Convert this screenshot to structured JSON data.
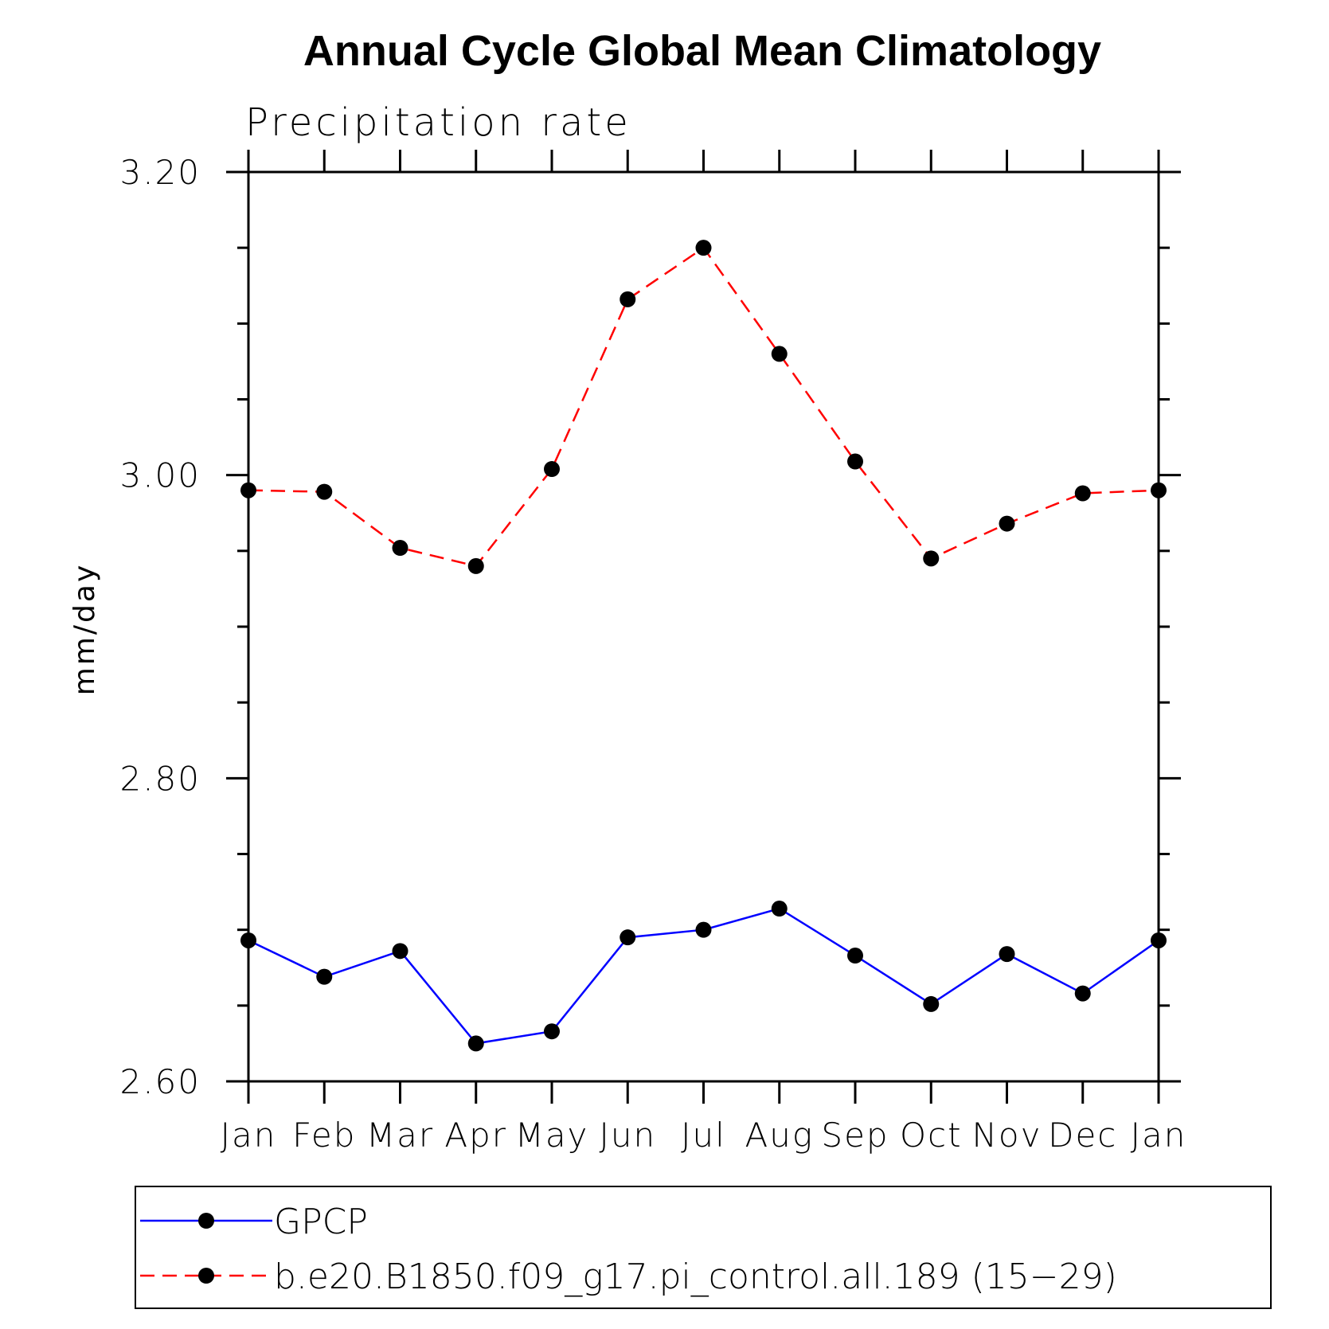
{
  "chart_data": {
    "type": "line",
    "title": "Annual Cycle Global Mean Climatology",
    "subtitle": "Precipitation rate",
    "xlabel": "",
    "ylabel": "mm/day",
    "categories": [
      "Jan",
      "Feb",
      "Mar",
      "Apr",
      "May",
      "Jun",
      "Jul",
      "Aug",
      "Sep",
      "Oct",
      "Nov",
      "Dec",
      "Jan"
    ],
    "ylim": [
      2.6,
      3.2
    ],
    "yticks": [
      "2.60",
      "2.80",
      "3.00",
      "3.20"
    ],
    "yminor_step": 0.05,
    "grid": false,
    "legend_position": "bottom",
    "series": [
      {
        "name": "GPCP",
        "color": "#0000ff",
        "dash": "solid",
        "values": [
          2.693,
          2.669,
          2.686,
          2.625,
          2.633,
          2.695,
          2.7,
          2.714,
          2.683,
          2.651,
          2.684,
          2.658,
          2.693
        ]
      },
      {
        "name": "b.e20.B1850.f09_g17.pi_control.all.189 (15−29)",
        "color": "#ff0000",
        "dash": "dashed",
        "values": [
          2.99,
          2.989,
          2.952,
          2.94,
          3.004,
          3.116,
          3.15,
          3.08,
          3.009,
          2.945,
          2.968,
          2.988,
          2.99
        ]
      }
    ]
  }
}
